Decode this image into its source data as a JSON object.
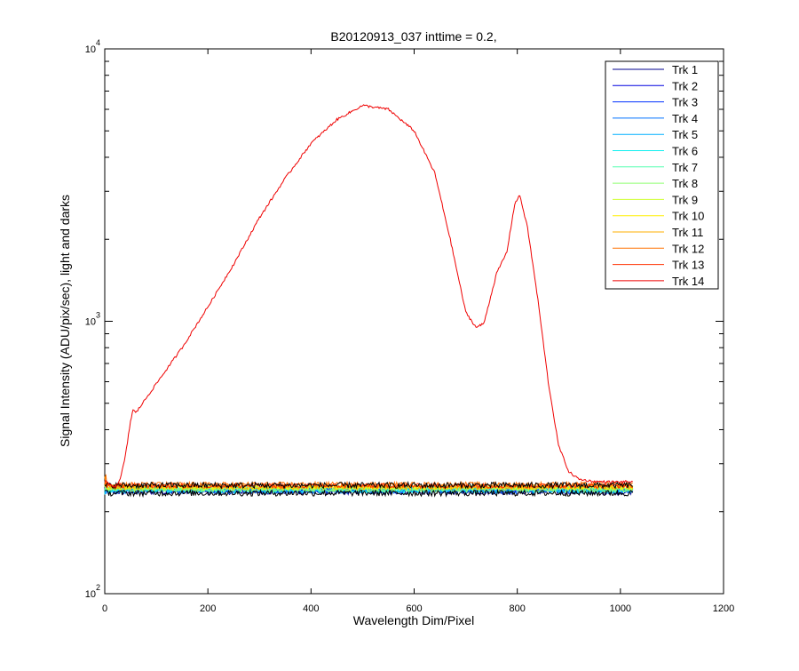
{
  "chart_data": {
    "type": "line",
    "title": "B20120913_037 inttime = 0.2,",
    "xlabel": "Wavelength Dim/Pixel",
    "ylabel": "Signal Intensity (ADU/pix/sec), light and darks",
    "xlim": [
      0,
      1200
    ],
    "ylim": [
      100,
      10000
    ],
    "yscale": "log",
    "grid": false,
    "legend_position": "top-right",
    "x_ticks": [
      0,
      200,
      400,
      600,
      800,
      1000,
      1200
    ],
    "y_ticks": [
      {
        "value": 100,
        "base": "10",
        "exp": "2"
      },
      {
        "value": 1000,
        "base": "10",
        "exp": "3"
      },
      {
        "value": 10000,
        "base": "10",
        "exp": "4"
      }
    ],
    "series": [
      {
        "name": "Trk 1",
        "color": "#00008f",
        "level": 236
      },
      {
        "name": "Trk 2",
        "color": "#0000df",
        "level": 240
      },
      {
        "name": "Trk 3",
        "color": "#0030ff",
        "level": 243
      },
      {
        "name": "Trk 4",
        "color": "#0070ff",
        "level": 238
      },
      {
        "name": "Trk 5",
        "color": "#00b0ff",
        "level": 242
      },
      {
        "name": "Trk 6",
        "color": "#10f0ef",
        "level": 239
      },
      {
        "name": "Trk 7",
        "color": "#50ffaf",
        "level": 244
      },
      {
        "name": "Trk 8",
        "color": "#8fff70",
        "level": 241
      },
      {
        "name": "Trk 9",
        "color": "#cfff30",
        "level": 245
      },
      {
        "name": "Trk 10",
        "color": "#ffef00",
        "level": 246
      },
      {
        "name": "Trk 11",
        "color": "#ffaf00",
        "level": 247
      },
      {
        "name": "Trk 12",
        "color": "#ff7000",
        "level": 252
      },
      {
        "name": "Trk 13",
        "color": "#ff3000",
        "level": 249
      },
      {
        "name": "Trk 14",
        "color": "#ef0000",
        "points": [
          [
            0,
            260
          ],
          [
            10,
            250
          ],
          [
            20,
            248
          ],
          [
            30,
            262
          ],
          [
            40,
            320
          ],
          [
            50,
            430
          ],
          [
            55,
            475
          ],
          [
            60,
            460
          ],
          [
            70,
            490
          ],
          [
            100,
            590
          ],
          [
            150,
            800
          ],
          [
            200,
            1130
          ],
          [
            250,
            1620
          ],
          [
            300,
            2400
          ],
          [
            350,
            3350
          ],
          [
            400,
            4500
          ],
          [
            450,
            5500
          ],
          [
            500,
            6200
          ],
          [
            550,
            6000
          ],
          [
            600,
            5000
          ],
          [
            640,
            3500
          ],
          [
            670,
            2000
          ],
          [
            700,
            1080
          ],
          [
            720,
            950
          ],
          [
            735,
            980
          ],
          [
            760,
            1500
          ],
          [
            780,
            1800
          ],
          [
            795,
            2700
          ],
          [
            805,
            2900
          ],
          [
            820,
            2200
          ],
          [
            840,
            1200
          ],
          [
            860,
            600
          ],
          [
            880,
            350
          ],
          [
            900,
            280
          ],
          [
            920,
            263
          ],
          [
            950,
            258
          ],
          [
            1000,
            257
          ],
          [
            1024,
            258
          ]
        ]
      }
    ]
  }
}
